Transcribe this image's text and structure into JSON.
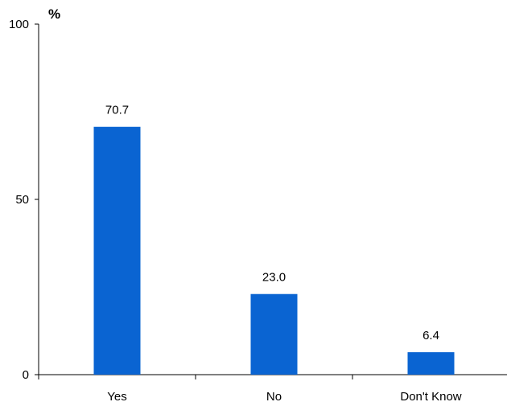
{
  "chart_data": {
    "type": "bar",
    "ylabel": "%",
    "categories": [
      "Yes",
      "No",
      "Don't Know"
    ],
    "values": [
      70.7,
      23.0,
      6.4
    ],
    "value_labels": [
      "70.7",
      "23.0",
      "6.4"
    ],
    "ylim": [
      0,
      100
    ],
    "yticks": [
      {
        "value": 0,
        "label": "0"
      },
      {
        "value": 50,
        "label": "50"
      },
      {
        "value": 100,
        "label": "100"
      }
    ],
    "bar_color": "#0a64d2",
    "grid": false,
    "legend": "none"
  }
}
